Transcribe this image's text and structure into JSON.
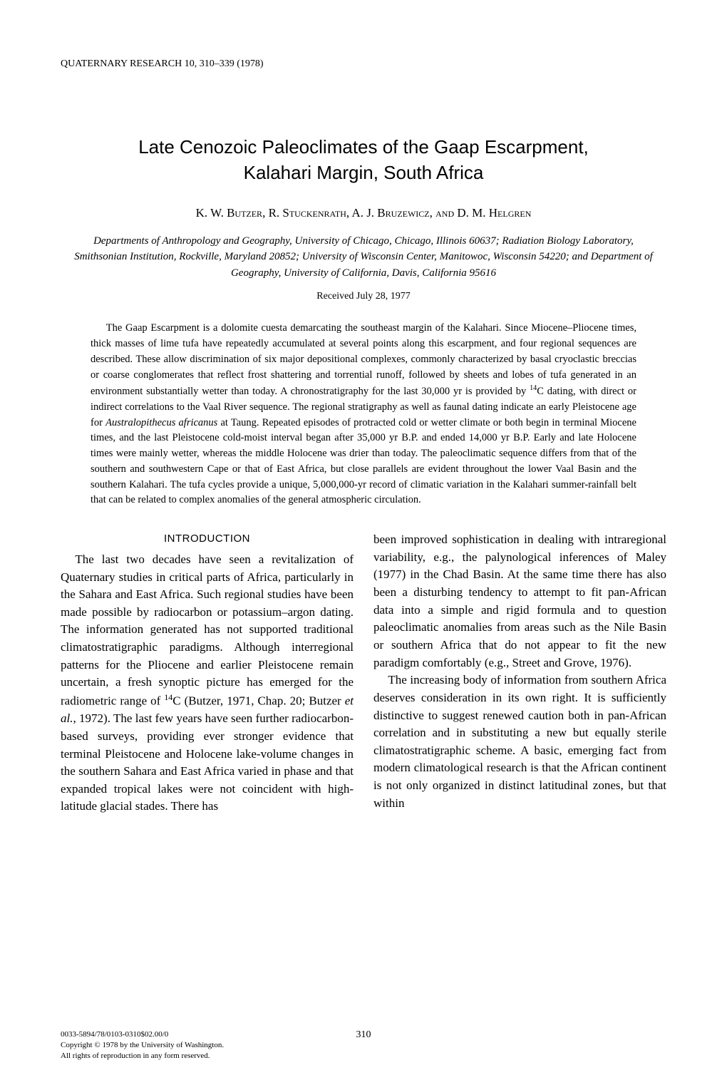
{
  "header": {
    "running_head": "QUATERNARY RESEARCH 10, 310–339 (1978)"
  },
  "article": {
    "title_line1": "Late Cenozoic Paleoclimates of the Gaap Escarpment,",
    "title_line2": "Kalahari Margin, South Africa",
    "authors": "K. W. Butzer, R. Stuckenrath, A. J. Bruzewicz, and D. M. Helgren",
    "affiliations": "Departments of Anthropology and Geography, University of Chicago, Chicago, Illinois 60637; Radiation Biology Laboratory, Smithsonian Institution, Rockville, Maryland 20852; University of Wisconsin Center, Manitowoc, Wisconsin 54220; and Department of Geography, University of California, Davis, California 95616",
    "received": "Received July 28, 1977",
    "abstract_pre": "The Gaap Escarpment is a dolomite cuesta demarcating the southeast margin of the Kalahari. Since Miocene–Pliocene times, thick masses of lime tufa have repeatedly accumulated at several points along this escarpment, and four regional sequences are described. These allow discrimination of six major depositional complexes, commonly characterized by basal cryoclastic breccias or coarse conglomerates that reflect frost shattering and torrential runoff, followed by sheets and lobes of tufa generated in an environment substantially wetter than today. A chronostratigraphy for the last 30,000 yr is provided by ",
    "abstract_c14": "14",
    "abstract_c14_label": "C dating, with direct or indirect correlations to the Vaal River sequence. The regional stratigraphy as well as faunal dating indicate an early Pleistocene age for ",
    "abstract_species": "Australopithecus africanus",
    "abstract_post": " at Taung. Repeated episodes of protracted cold or wetter climate or both begin in terminal Miocene times, and the last Pleistocene cold-moist interval began after 35,000 yr B.P. and ended 14,000 yr B.P. Early and late Holocene times were mainly wetter, whereas the middle Holocene was drier than today. The paleoclimatic sequence differs from that of the southern and southwestern Cape or that of East Africa, but close parallels are evident throughout the lower Vaal Basin and the southern Kalahari. The tufa cycles provide a unique, 5,000,000-yr record of climatic variation in the Kalahari summer-rainfall belt that can be related to complex anomalies of the general atmospheric circulation."
  },
  "body": {
    "section_head": "INTRODUCTION",
    "col1_para1_pre": "The last two decades have seen a revitalization of Quaternary studies in critical parts of Africa, particularly in the Sahara and East Africa. Such regional studies have been made possible by radiocarbon or potassium–argon dating. The information generated has not supported traditional climatostratigraphic paradigms. Although interregional patterns for the Pliocene and earlier Pleistocene remain uncertain, a fresh synoptic picture has emerged for the radiometric range of ",
    "col1_c14": "14",
    "col1_para1_mid": "C (Butzer, 1971, Chap. 20; Butzer ",
    "col1_etal": "et al.",
    "col1_para1_post": ", 1972). The last few years have seen further radiocarbon-based surveys, providing ever stronger evidence that terminal Pleistocene and Holocene lake-volume changes in the southern Sahara and East Africa varied in phase and that expanded tropical lakes were not coincident with high-latitude glacial stades. There has",
    "col2_para1": "been improved sophistication in dealing with intraregional variability, e.g., the palynological inferences of Maley (1977) in the Chad Basin. At the same time there has also been a disturbing tendency to attempt to fit pan-African data into a simple and rigid formula and to question paleoclimatic anomalies from areas such as the Nile Basin or southern Africa that do not appear to fit the new paradigm comfortably (e.g., Street and Grove, 1976).",
    "col2_para2": "The increasing body of information from southern Africa deserves consideration in its own right. It is sufficiently distinctive to suggest renewed caution both in pan-African correlation and in substituting a new but equally sterile climatostratigraphic scheme. A basic, emerging fact from modern climatological research is that the African continent is not only organized in distinct latitudinal zones, but that within"
  },
  "footer": {
    "line1": "0033-5894/78/0103-0310$02.00/0",
    "line2": "Copyright © 1978 by the University of Washington.",
    "line3": "All rights of reproduction in any form reserved.",
    "page_number": "310"
  }
}
